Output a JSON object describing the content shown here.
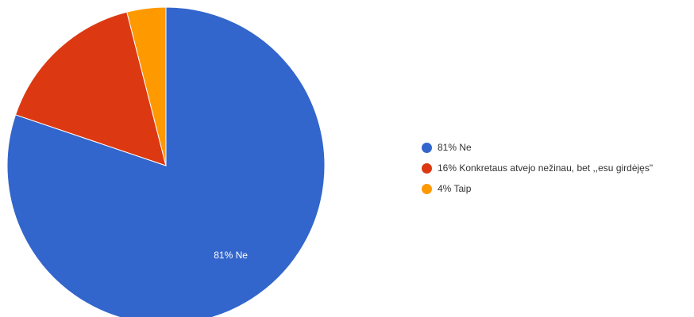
{
  "chart_data": {
    "type": "pie",
    "slices": [
      {
        "label": "Ne",
        "value": 81,
        "display": "81% Ne",
        "color": "#3366cc"
      },
      {
        "label": "Konkretaus atvejo nežinau, bet ,,esu girdėjęs\"",
        "value": 16,
        "display": "16% Konkretaus atvejo nežinau, bet ,,esu girdėjęs\"",
        "color": "#dc3912"
      },
      {
        "label": "Taip",
        "value": 4,
        "display": "4% Taip",
        "color": "#ff9900"
      }
    ],
    "slice_labels": [
      "81% Ne"
    ],
    "legend_position": "right"
  }
}
